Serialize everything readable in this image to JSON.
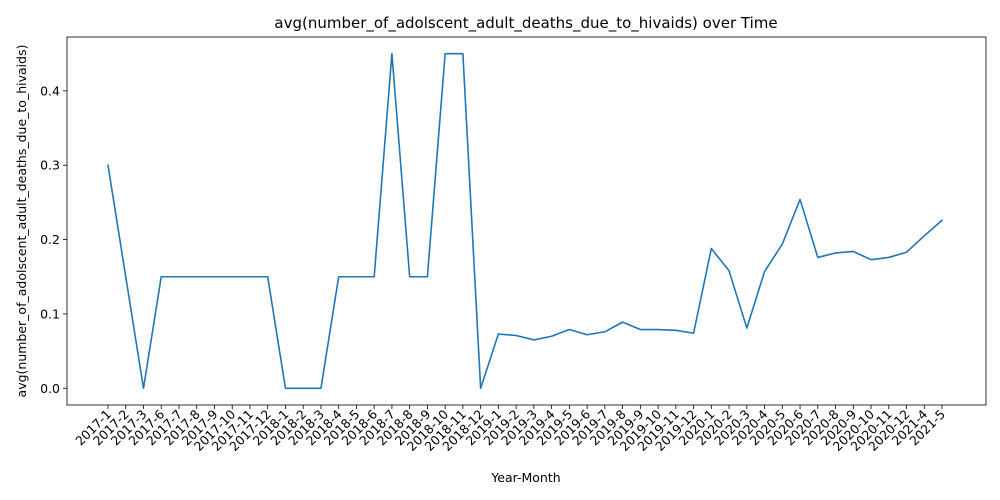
{
  "chart_data": {
    "type": "line",
    "title": "avg(number_of_adolscent_adult_deaths_due_to_hivaids) over Time",
    "xlabel": "Year-Month",
    "ylabel": "avg(number_of_adolscent_adult_deaths_due_to_hivaids)",
    "ylim": [
      -0.0225,
      0.4725
    ],
    "yticks": [
      "0.0",
      "0.1",
      "0.2",
      "0.3",
      "0.4"
    ],
    "grid": false,
    "line_color": "#1f77b4",
    "categories": [
      "2017-1",
      "2017-2",
      "2017-3",
      "2017-6",
      "2017-7",
      "2017-8",
      "2017-9",
      "2017-10",
      "2017-11",
      "2017-12",
      "2018-1",
      "2018-2",
      "2018-3",
      "2018-4",
      "2018-5",
      "2018-6",
      "2018-7",
      "2018-8",
      "2018-9",
      "2018-10",
      "2018-11",
      "2018-12",
      "2019-1",
      "2019-2",
      "2019-3",
      "2019-4",
      "2019-5",
      "2019-6",
      "2019-7",
      "2019-8",
      "2019-9",
      "2019-10",
      "2019-11",
      "2019-12",
      "2020-1",
      "2020-2",
      "2020-3",
      "2020-4",
      "2020-5",
      "2020-6",
      "2020-7",
      "2020-8",
      "2020-9",
      "2020-10",
      "2020-11",
      "2020-12",
      "2021-4",
      "2021-5"
    ],
    "series": [
      {
        "values": [
          0.3,
          0.15,
          0.0,
          0.15,
          0.15,
          0.15,
          0.15,
          0.15,
          0.15,
          0.15,
          0.0,
          0.0,
          0.0,
          0.15,
          0.15,
          0.15,
          0.45,
          0.15,
          0.15,
          0.45,
          0.45,
          0.0,
          0.073,
          0.071,
          0.065,
          0.07,
          0.079,
          0.072,
          0.076,
          0.089,
          0.079,
          0.079,
          0.078,
          0.074,
          0.188,
          0.158,
          0.081,
          0.157,
          0.194,
          0.254,
          0.176,
          0.182,
          0.184,
          0.173,
          0.176,
          0.183,
          0.205,
          0.226
        ]
      }
    ]
  }
}
